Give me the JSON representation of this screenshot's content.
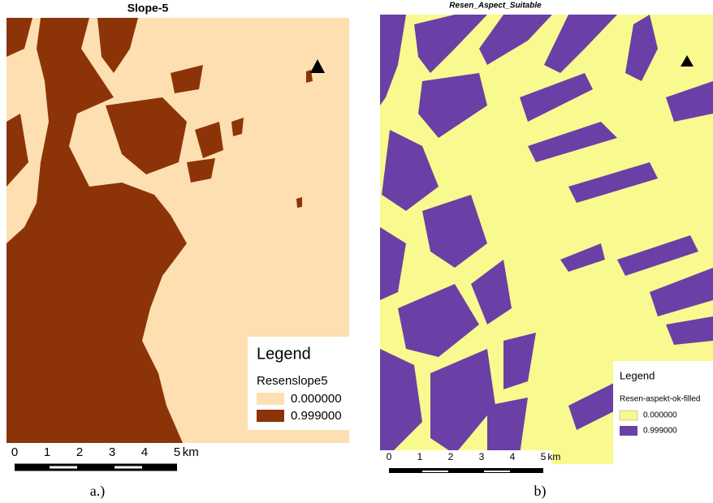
{
  "panels": [
    {
      "title": "Slope-5",
      "legend": {
        "title": "Legend",
        "layer": "Resenslope5",
        "items": [
          {
            "label": "0.000000",
            "color": "#fddfb1"
          },
          {
            "label": "0.999000",
            "color": "#8c3408"
          }
        ]
      },
      "scale": {
        "ticks": [
          "0",
          "1",
          "2",
          "3",
          "4",
          "5"
        ],
        "unit": "km"
      },
      "caption": "a.)"
    },
    {
      "title": "Resen_Aspect_Suitable",
      "legend": {
        "title": "Legend",
        "layer": "Resen-aspekt-ok-filled",
        "items": [
          {
            "label": "0.000000",
            "color": "#f8f98e"
          },
          {
            "label": "0.999000",
            "color": "#6a40a6"
          }
        ]
      },
      "scale": {
        "ticks": [
          "0",
          "1",
          "2",
          "3",
          "4",
          "5"
        ],
        "unit": "km"
      },
      "caption": "b)"
    }
  ]
}
